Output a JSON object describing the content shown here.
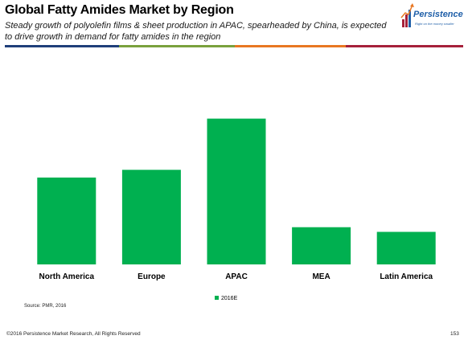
{
  "header": {
    "title": "Global Fatty Amides Market by Region",
    "subtitle": "Steady growth of polyolefin films & sheet production in APAC, spearheaded by China, is expected to drive growth in demand for fatty amides in the region"
  },
  "logo": {
    "word": "Persistence",
    "tagline": "Right on the money smaller"
  },
  "colors": {
    "bar": "#00b050",
    "band": [
      "#1f3f7a",
      "#7aa13d",
      "#e87722",
      "#a6213a"
    ]
  },
  "chart_data": {
    "type": "bar",
    "categories": [
      "North America",
      "Europe",
      "APAC",
      "MEA",
      "Latin America"
    ],
    "series": [
      {
        "name": "2016E",
        "values": [
          56,
          61,
          94,
          24,
          21
        ]
      }
    ],
    "ylim": [
      0,
      100
    ],
    "grid": false,
    "legend": "bottom",
    "title": "",
    "xlabel": "",
    "ylabel": ""
  },
  "source": "Source: PMR, 2016",
  "footer": {
    "copyright": "©2016 Persistence Market Research, All Rights Reserved",
    "page": "153"
  }
}
